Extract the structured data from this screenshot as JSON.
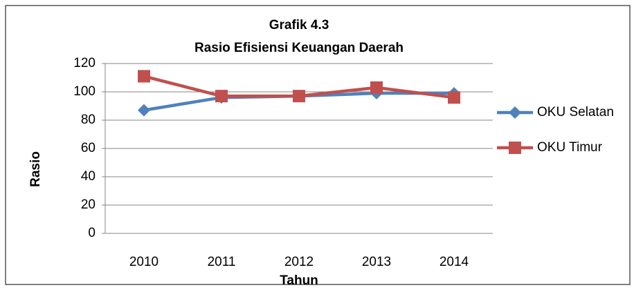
{
  "chart_data": {
    "type": "line",
    "title": "Grafik 4.3",
    "subtitle": "Rasio Efisiensi Keuangan Daerah",
    "x_label": "Tahun",
    "y_label": "Rasio",
    "categories": [
      "2010",
      "2011",
      "2012",
      "2013",
      "2014"
    ],
    "series": [
      {
        "name": "OKU Selatan",
        "color": "#4f81bd",
        "marker": "diamond",
        "values": [
          87,
          96,
          97,
          99,
          99
        ]
      },
      {
        "name": "OKU Timur",
        "color": "#c0504d",
        "marker": "square",
        "values": [
          111,
          97,
          97,
          103,
          96
        ]
      }
    ],
    "ylim": [
      0,
      120
    ],
    "yticks": [
      0,
      20,
      40,
      60,
      80,
      100,
      120
    ],
    "grid": true,
    "legend": "right"
  }
}
